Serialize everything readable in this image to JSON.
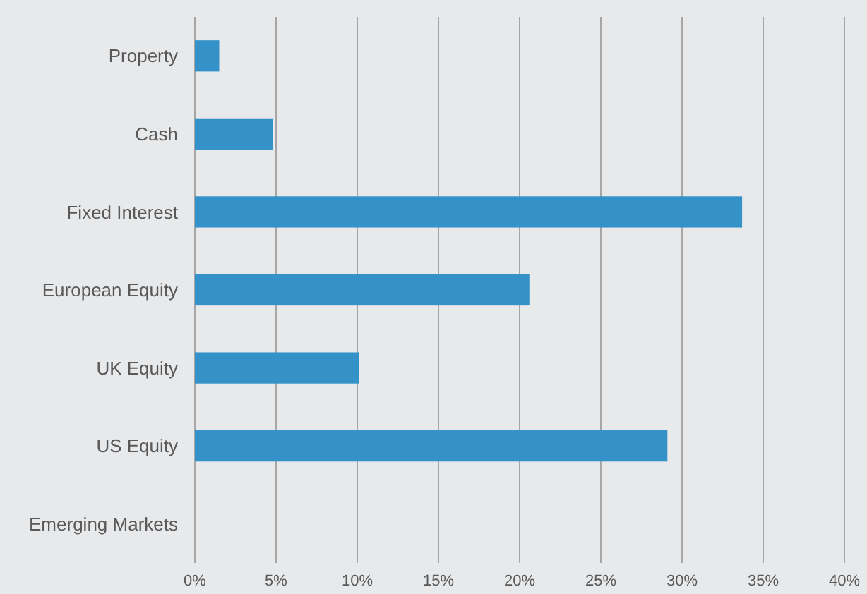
{
  "chart_data": {
    "type": "bar",
    "orientation": "horizontal",
    "categories": [
      "Property",
      "Cash",
      "Fixed Interest",
      "European Equity",
      "UK Equity",
      "US Equity",
      "Emerging Markets"
    ],
    "values": [
      1.5,
      4.8,
      33.7,
      20.6,
      10.1,
      29.1,
      0
    ],
    "color": "#3492c9",
    "xlim": [
      0,
      40
    ],
    "xticks": [
      {
        "value": 0,
        "label": "0%"
      },
      {
        "value": 5,
        "label": "5%"
      },
      {
        "value": 10,
        "label": "10%"
      },
      {
        "value": 15,
        "label": "15%"
      },
      {
        "value": 20,
        "label": "20%"
      },
      {
        "value": 25,
        "label": "25%"
      },
      {
        "value": 30,
        "label": "30%"
      },
      {
        "value": 35,
        "label": "35%"
      },
      {
        "value": 40,
        "label": "40%"
      }
    ],
    "grid": "x"
  }
}
